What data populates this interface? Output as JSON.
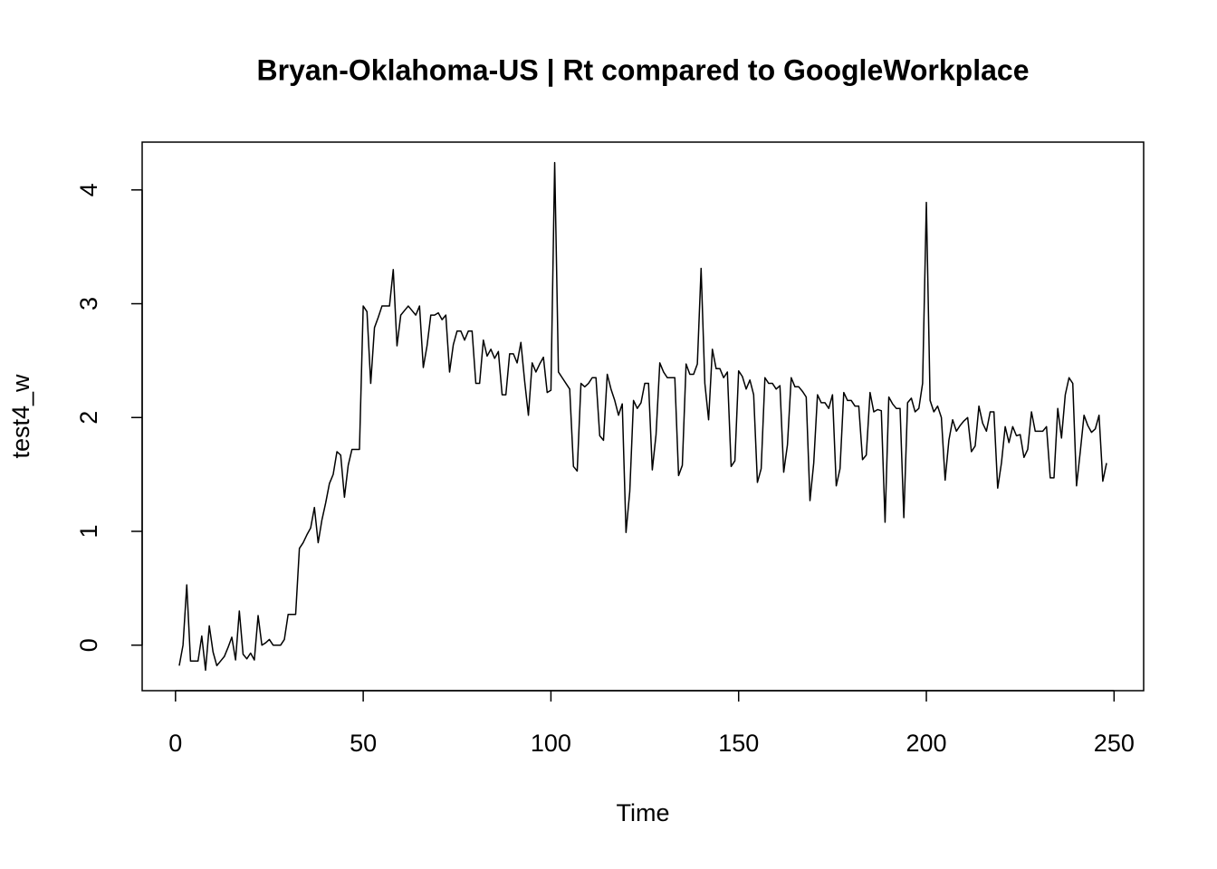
{
  "chart_data": {
    "type": "line",
    "title": "Bryan-Oklahoma-US | Rt compared to GoogleWorkplace",
    "xlabel": "Time",
    "ylabel": "test4_w",
    "color": "#000000",
    "xlim": [
      -8.88,
      257.88
    ],
    "ylim": [
      -0.4,
      4.42
    ],
    "xticks": [
      0,
      50,
      100,
      150,
      200,
      250
    ],
    "yticks": [
      0,
      1,
      2,
      3,
      4
    ],
    "x": [
      1,
      2,
      3,
      4,
      5,
      6,
      7,
      8,
      9,
      10,
      11,
      12,
      13,
      14,
      15,
      16,
      17,
      18,
      19,
      20,
      21,
      22,
      23,
      24,
      25,
      26,
      27,
      28,
      29,
      30,
      31,
      32,
      33,
      34,
      35,
      36,
      37,
      38,
      39,
      40,
      41,
      42,
      43,
      44,
      45,
      46,
      47,
      48,
      49,
      50,
      51,
      52,
      53,
      54,
      55,
      56,
      57,
      58,
      59,
      60,
      61,
      62,
      63,
      64,
      65,
      66,
      67,
      68,
      69,
      70,
      71,
      72,
      73,
      74,
      75,
      76,
      77,
      78,
      79,
      80,
      81,
      82,
      83,
      84,
      85,
      86,
      87,
      88,
      89,
      90,
      91,
      92,
      93,
      94,
      95,
      96,
      97,
      98,
      99,
      100,
      101,
      102,
      103,
      104,
      105,
      106,
      107,
      108,
      109,
      110,
      111,
      112,
      113,
      114,
      115,
      116,
      117,
      118,
      119,
      120,
      121,
      122,
      123,
      124,
      125,
      126,
      127,
      128,
      129,
      130,
      131,
      132,
      133,
      134,
      135,
      136,
      137,
      138,
      139,
      140,
      141,
      142,
      143,
      144,
      145,
      146,
      147,
      148,
      149,
      150,
      151,
      152,
      153,
      154,
      155,
      156,
      157,
      158,
      159,
      160,
      161,
      162,
      163,
      164,
      165,
      166,
      167,
      168,
      169,
      170,
      171,
      172,
      173,
      174,
      175,
      176,
      177,
      178,
      179,
      180,
      181,
      182,
      183,
      184,
      185,
      186,
      187,
      188,
      189,
      190,
      191,
      192,
      193,
      194,
      195,
      196,
      197,
      198,
      199,
      200,
      201,
      202,
      203,
      204,
      205,
      206,
      207,
      208,
      209,
      210,
      211,
      212,
      213,
      214,
      215,
      216,
      217,
      218,
      219,
      220,
      221,
      222,
      223,
      224,
      225,
      226,
      227,
      228,
      229,
      230,
      231,
      232,
      233,
      234,
      235,
      236,
      237,
      238,
      239,
      240,
      241,
      242,
      243,
      244,
      245,
      246,
      247,
      248
    ],
    "values": [
      -0.18,
      0.0,
      0.53,
      -0.14,
      -0.14,
      -0.14,
      0.08,
      -0.22,
      0.17,
      -0.06,
      -0.18,
      -0.14,
      -0.1,
      -0.02,
      0.07,
      -0.13,
      0.3,
      -0.08,
      -0.12,
      -0.07,
      -0.13,
      0.26,
      0.0,
      0.02,
      0.05,
      0.0,
      0.0,
      0.0,
      0.05,
      0.27,
      0.27,
      0.27,
      0.85,
      0.9,
      0.97,
      1.03,
      1.21,
      0.9,
      1.1,
      1.25,
      1.42,
      1.5,
      1.7,
      1.67,
      1.3,
      1.58,
      1.72,
      1.72,
      1.72,
      2.98,
      2.93,
      2.3,
      2.79,
      2.88,
      2.98,
      2.98,
      2.98,
      3.3,
      2.63,
      2.9,
      2.94,
      2.98,
      2.94,
      2.9,
      2.98,
      2.44,
      2.63,
      2.9,
      2.9,
      2.92,
      2.86,
      2.9,
      2.4,
      2.64,
      2.76,
      2.76,
      2.68,
      2.76,
      2.76,
      2.3,
      2.3,
      2.68,
      2.54,
      2.6,
      2.52,
      2.58,
      2.2,
      2.2,
      2.56,
      2.56,
      2.48,
      2.66,
      2.32,
      2.02,
      2.48,
      2.4,
      2.47,
      2.53,
      2.22,
      2.24,
      4.24,
      2.4,
      2.35,
      2.3,
      2.25,
      1.57,
      1.53,
      2.3,
      2.27,
      2.3,
      2.35,
      2.35,
      1.84,
      1.8,
      2.38,
      2.25,
      2.15,
      2.02,
      2.12,
      0.99,
      1.35,
      2.15,
      2.08,
      2.13,
      2.3,
      2.3,
      1.54,
      1.85,
      2.48,
      2.4,
      2.35,
      2.35,
      2.35,
      1.49,
      1.58,
      2.47,
      2.38,
      2.38,
      2.47,
      3.31,
      2.3,
      1.98,
      2.6,
      2.43,
      2.43,
      2.35,
      2.4,
      1.57,
      1.62,
      2.41,
      2.36,
      2.25,
      2.33,
      2.2,
      1.43,
      1.55,
      2.35,
      2.3,
      2.3,
      2.25,
      2.28,
      1.52,
      1.76,
      2.35,
      2.27,
      2.27,
      2.23,
      2.18,
      1.27,
      1.6,
      2.2,
      2.13,
      2.13,
      2.08,
      2.2,
      1.4,
      1.55,
      2.22,
      2.15,
      2.15,
      2.1,
      2.1,
      1.63,
      1.67,
      2.22,
      2.05,
      2.07,
      2.06,
      1.08,
      2.18,
      2.12,
      2.08,
      2.08,
      1.12,
      2.13,
      2.17,
      2.05,
      2.08,
      2.3,
      3.89,
      2.15,
      2.05,
      2.1,
      2.0,
      1.45,
      1.8,
      1.98,
      1.88,
      1.93,
      1.97,
      2.0,
      1.7,
      1.75,
      2.1,
      1.95,
      1.88,
      2.05,
      2.05,
      1.38,
      1.6,
      1.92,
      1.78,
      1.92,
      1.84,
      1.85,
      1.65,
      1.72,
      2.05,
      1.88,
      1.88,
      1.88,
      1.92,
      1.47,
      1.47,
      2.08,
      1.82,
      2.2,
      2.35,
      2.3,
      1.4,
      1.7,
      2.02,
      1.93,
      1.87,
      1.9,
      2.02,
      1.44,
      1.6
    ]
  }
}
